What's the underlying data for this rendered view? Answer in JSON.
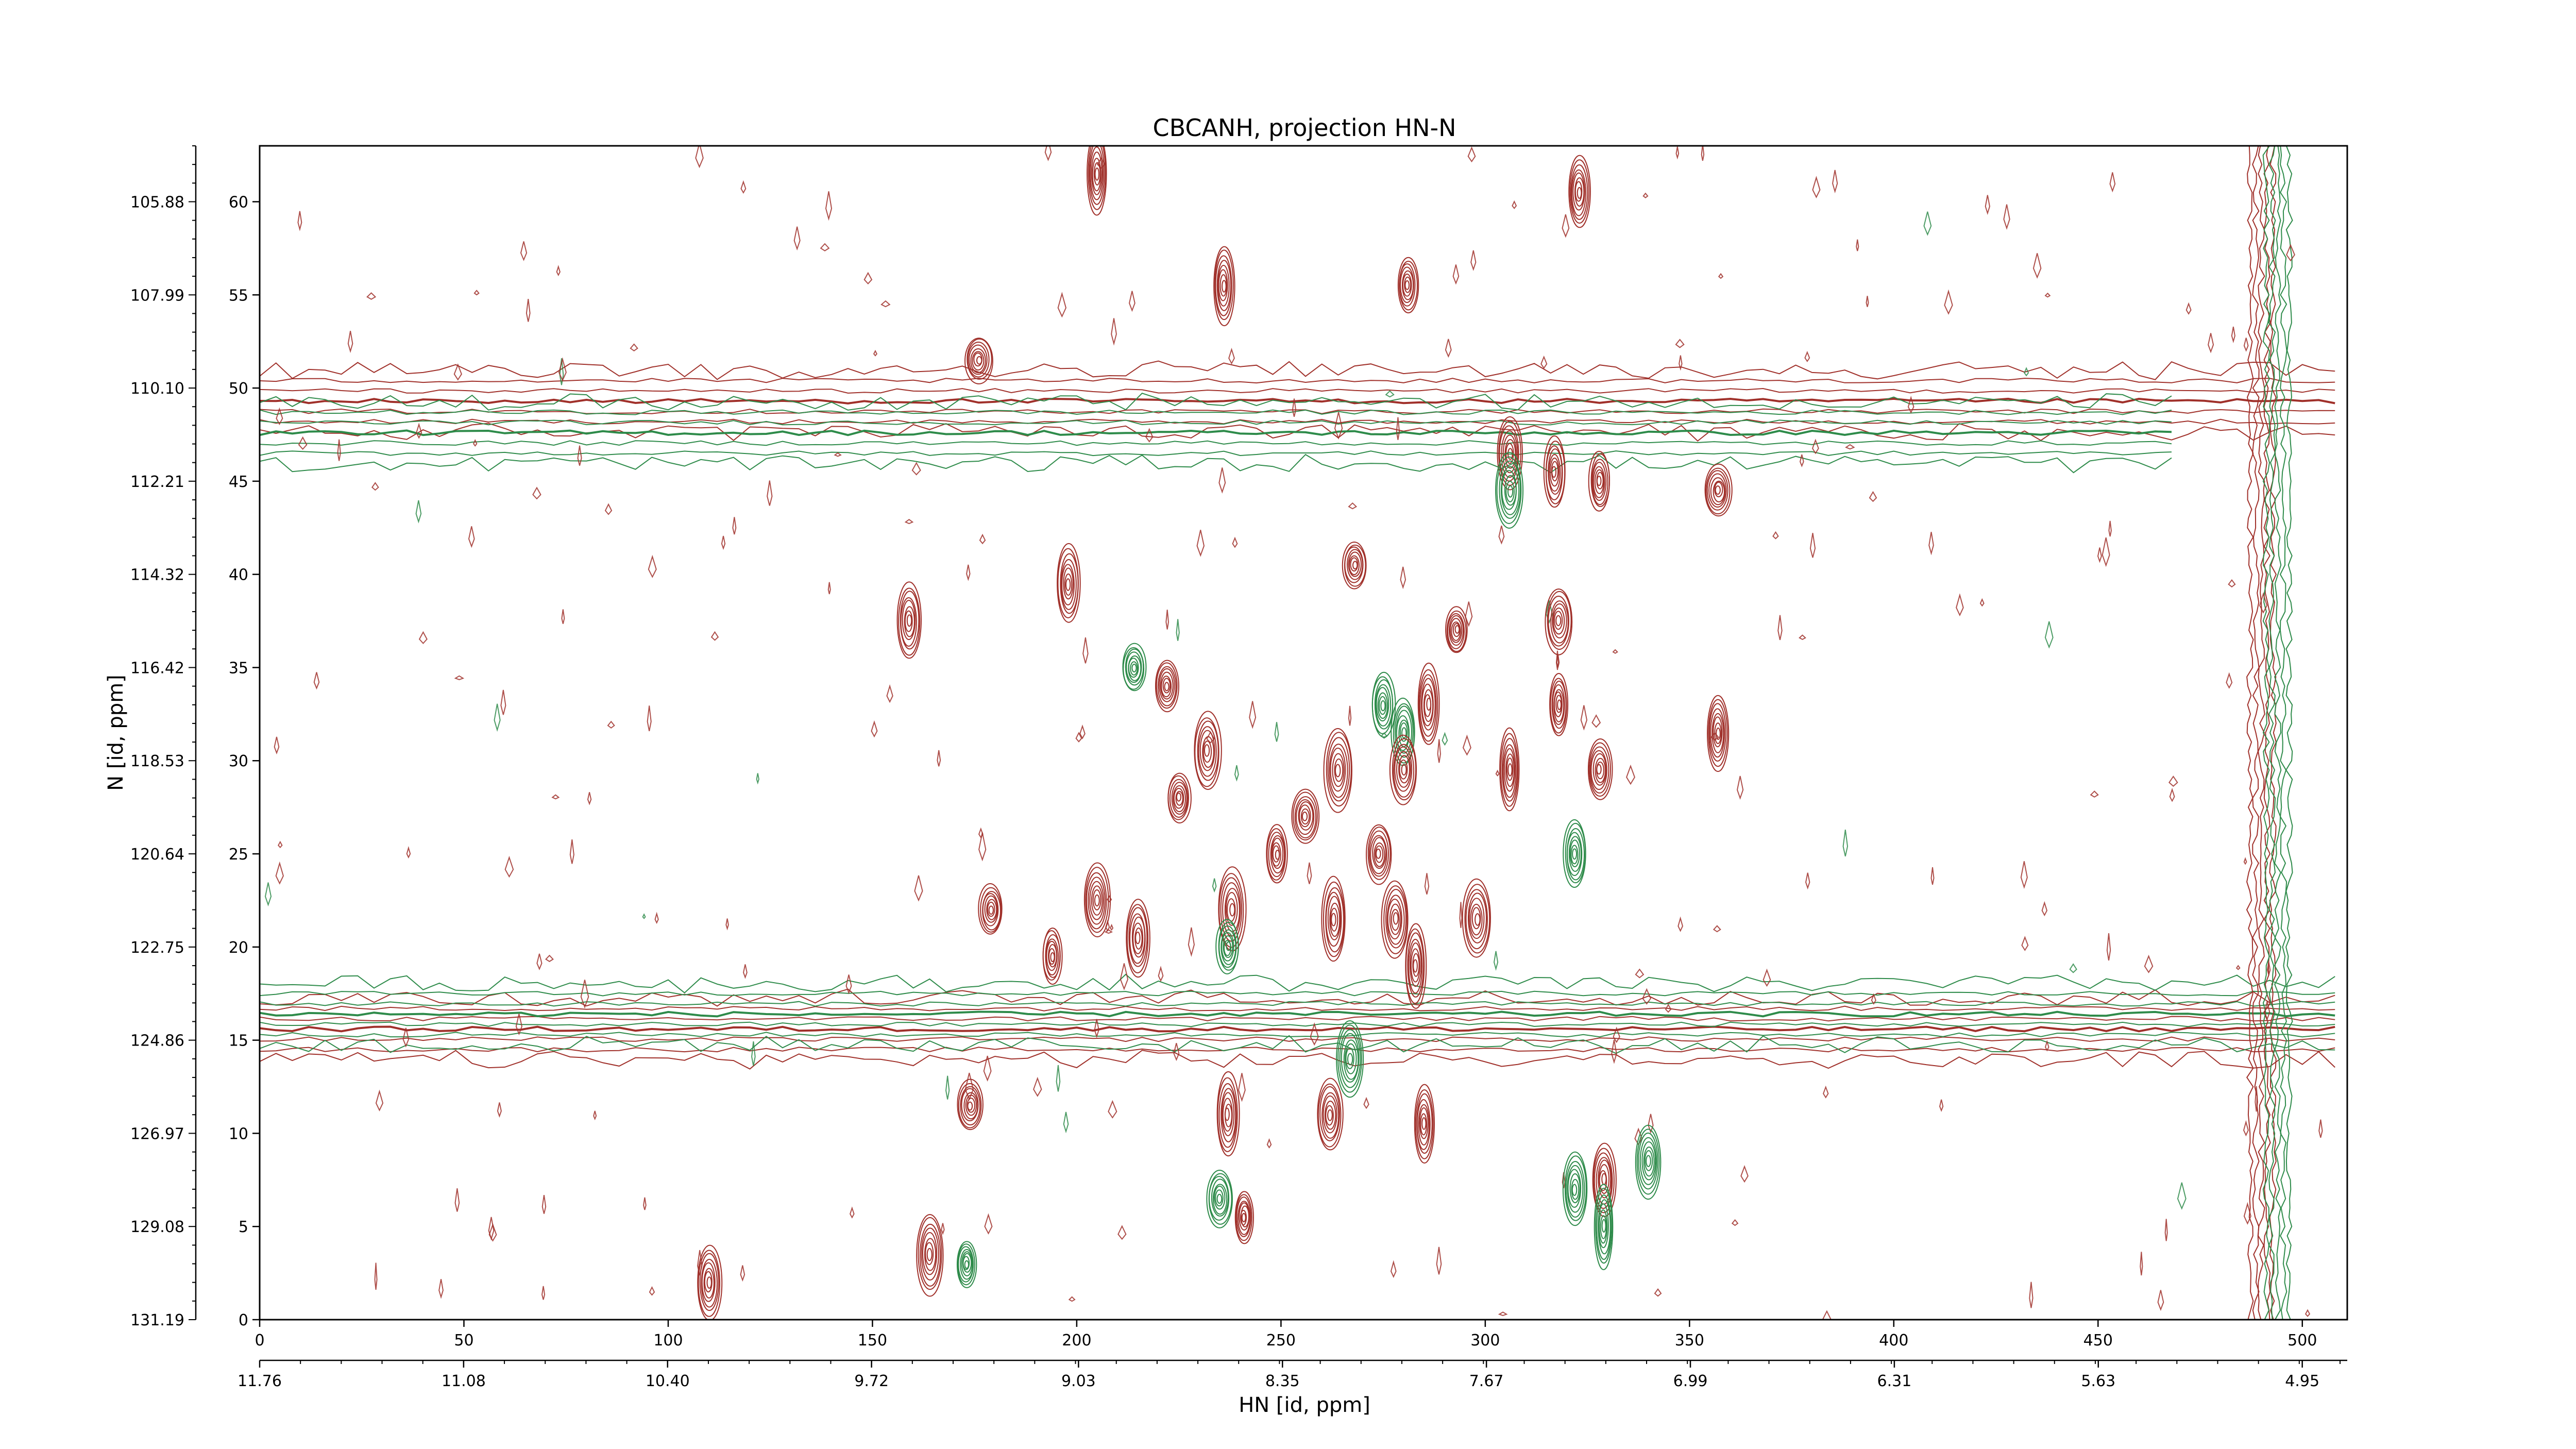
{
  "chart_data": {
    "type": "contour",
    "title": "CBCANH, projection HN-N",
    "xlabel": "HN [id, ppm]",
    "ylabel": "N [id, ppm]",
    "x_index_ticks": [
      "0",
      "50",
      "100",
      "150",
      "200",
      "250",
      "300",
      "350",
      "400",
      "450",
      "500"
    ],
    "x_ppm_ticks": [
      "11.76",
      "11.08",
      "10.40",
      "9.72",
      "9.03",
      "8.35",
      "7.67",
      "6.99",
      "6.31",
      "5.63",
      "4.95"
    ],
    "y_index_ticks": [
      "0",
      "5",
      "10",
      "15",
      "20",
      "25",
      "30",
      "35",
      "40",
      "45",
      "50",
      "55",
      "60"
    ],
    "y_ppm_ticks": [
      "131.19",
      "129.08",
      "126.97",
      "124.86",
      "122.75",
      "120.64",
      "118.53",
      "116.42",
      "114.32",
      "112.21",
      "110.10",
      "107.99",
      "105.88"
    ],
    "x_index_range": [
      0,
      511
    ],
    "y_index_range": [
      0,
      63
    ],
    "x_ppm_range": [
      11.76,
      4.8
    ],
    "y_ppm_range": [
      131.19,
      104.5
    ],
    "grid": false,
    "colors": {
      "positive": "#a0302a",
      "negative": "#2e8b4a"
    },
    "horizontal_ridges": [
      {
        "y": 49.3,
        "x_range": [
          0,
          511
        ],
        "sign": "positive",
        "note": ""
      },
      {
        "y": 47.6,
        "x_range": [
          0,
          470
        ],
        "sign": "negative",
        "note": ""
      },
      {
        "y": 15.6,
        "x_range": [
          0,
          511
        ],
        "sign": "positive",
        "note": ""
      },
      {
        "y": 16.4,
        "x_range": [
          0,
          511
        ],
        "sign": "negative",
        "note": ""
      }
    ],
    "vertical_ridges": [
      {
        "x": 490,
        "sign": "positive"
      },
      {
        "x": 494,
        "sign": "negative"
      }
    ],
    "peaks": [
      {
        "x": 205,
        "y": 61.5,
        "sign": "positive"
      },
      {
        "x": 323,
        "y": 60.5,
        "sign": "positive"
      },
      {
        "x": 236,
        "y": 55.5,
        "sign": "positive"
      },
      {
        "x": 281,
        "y": 55.5,
        "sign": "positive"
      },
      {
        "x": 176,
        "y": 51.5,
        "sign": "positive"
      },
      {
        "x": 306,
        "y": 46.5,
        "sign": "positive"
      },
      {
        "x": 317,
        "y": 45.5,
        "sign": "positive"
      },
      {
        "x": 328,
        "y": 45.0,
        "sign": "positive"
      },
      {
        "x": 306,
        "y": 44.5,
        "sign": "negative"
      },
      {
        "x": 357,
        "y": 44.5,
        "sign": "positive"
      },
      {
        "x": 268,
        "y": 40.5,
        "sign": "positive"
      },
      {
        "x": 198,
        "y": 39.5,
        "sign": "positive"
      },
      {
        "x": 159,
        "y": 37.5,
        "sign": "positive"
      },
      {
        "x": 318,
        "y": 37.5,
        "sign": "positive"
      },
      {
        "x": 293,
        "y": 37.0,
        "sign": "positive"
      },
      {
        "x": 214,
        "y": 35.0,
        "sign": "negative"
      },
      {
        "x": 222,
        "y": 34.0,
        "sign": "positive"
      },
      {
        "x": 275,
        "y": 33.0,
        "sign": "negative"
      },
      {
        "x": 286,
        "y": 33.0,
        "sign": "positive"
      },
      {
        "x": 318,
        "y": 33.0,
        "sign": "positive"
      },
      {
        "x": 280,
        "y": 31.5,
        "sign": "negative"
      },
      {
        "x": 357,
        "y": 31.5,
        "sign": "positive"
      },
      {
        "x": 232,
        "y": 30.5,
        "sign": "positive"
      },
      {
        "x": 264,
        "y": 29.5,
        "sign": "positive"
      },
      {
        "x": 280,
        "y": 29.5,
        "sign": "positive"
      },
      {
        "x": 306,
        "y": 29.5,
        "sign": "positive"
      },
      {
        "x": 328,
        "y": 29.5,
        "sign": "positive"
      },
      {
        "x": 225,
        "y": 28.0,
        "sign": "positive"
      },
      {
        "x": 256,
        "y": 27.0,
        "sign": "positive"
      },
      {
        "x": 249,
        "y": 25.0,
        "sign": "positive"
      },
      {
        "x": 274,
        "y": 25.0,
        "sign": "positive"
      },
      {
        "x": 322,
        "y": 25.0,
        "sign": "negative"
      },
      {
        "x": 205,
        "y": 22.5,
        "sign": "positive"
      },
      {
        "x": 179,
        "y": 22.0,
        "sign": "positive"
      },
      {
        "x": 238,
        "y": 22.0,
        "sign": "positive"
      },
      {
        "x": 263,
        "y": 21.5,
        "sign": "positive"
      },
      {
        "x": 278,
        "y": 21.5,
        "sign": "positive"
      },
      {
        "x": 298,
        "y": 21.5,
        "sign": "positive"
      },
      {
        "x": 215,
        "y": 20.5,
        "sign": "positive"
      },
      {
        "x": 237,
        "y": 20.0,
        "sign": "negative"
      },
      {
        "x": 194,
        "y": 19.5,
        "sign": "positive"
      },
      {
        "x": 283,
        "y": 19.0,
        "sign": "positive"
      },
      {
        "x": 267,
        "y": 14.0,
        "sign": "negative"
      },
      {
        "x": 237,
        "y": 11.0,
        "sign": "positive"
      },
      {
        "x": 174,
        "y": 11.5,
        "sign": "positive"
      },
      {
        "x": 262,
        "y": 11.0,
        "sign": "positive"
      },
      {
        "x": 285,
        "y": 10.5,
        "sign": "positive"
      },
      {
        "x": 322,
        "y": 7.0,
        "sign": "negative"
      },
      {
        "x": 329,
        "y": 7.5,
        "sign": "positive"
      },
      {
        "x": 340,
        "y": 8.5,
        "sign": "negative"
      },
      {
        "x": 235,
        "y": 6.5,
        "sign": "negative"
      },
      {
        "x": 241,
        "y": 5.5,
        "sign": "positive"
      },
      {
        "x": 329,
        "y": 5.0,
        "sign": "negative"
      },
      {
        "x": 164,
        "y": 3.5,
        "sign": "positive"
      },
      {
        "x": 173,
        "y": 3.0,
        "sign": "negative"
      },
      {
        "x": 110,
        "y": 2.0,
        "sign": "positive"
      }
    ]
  }
}
